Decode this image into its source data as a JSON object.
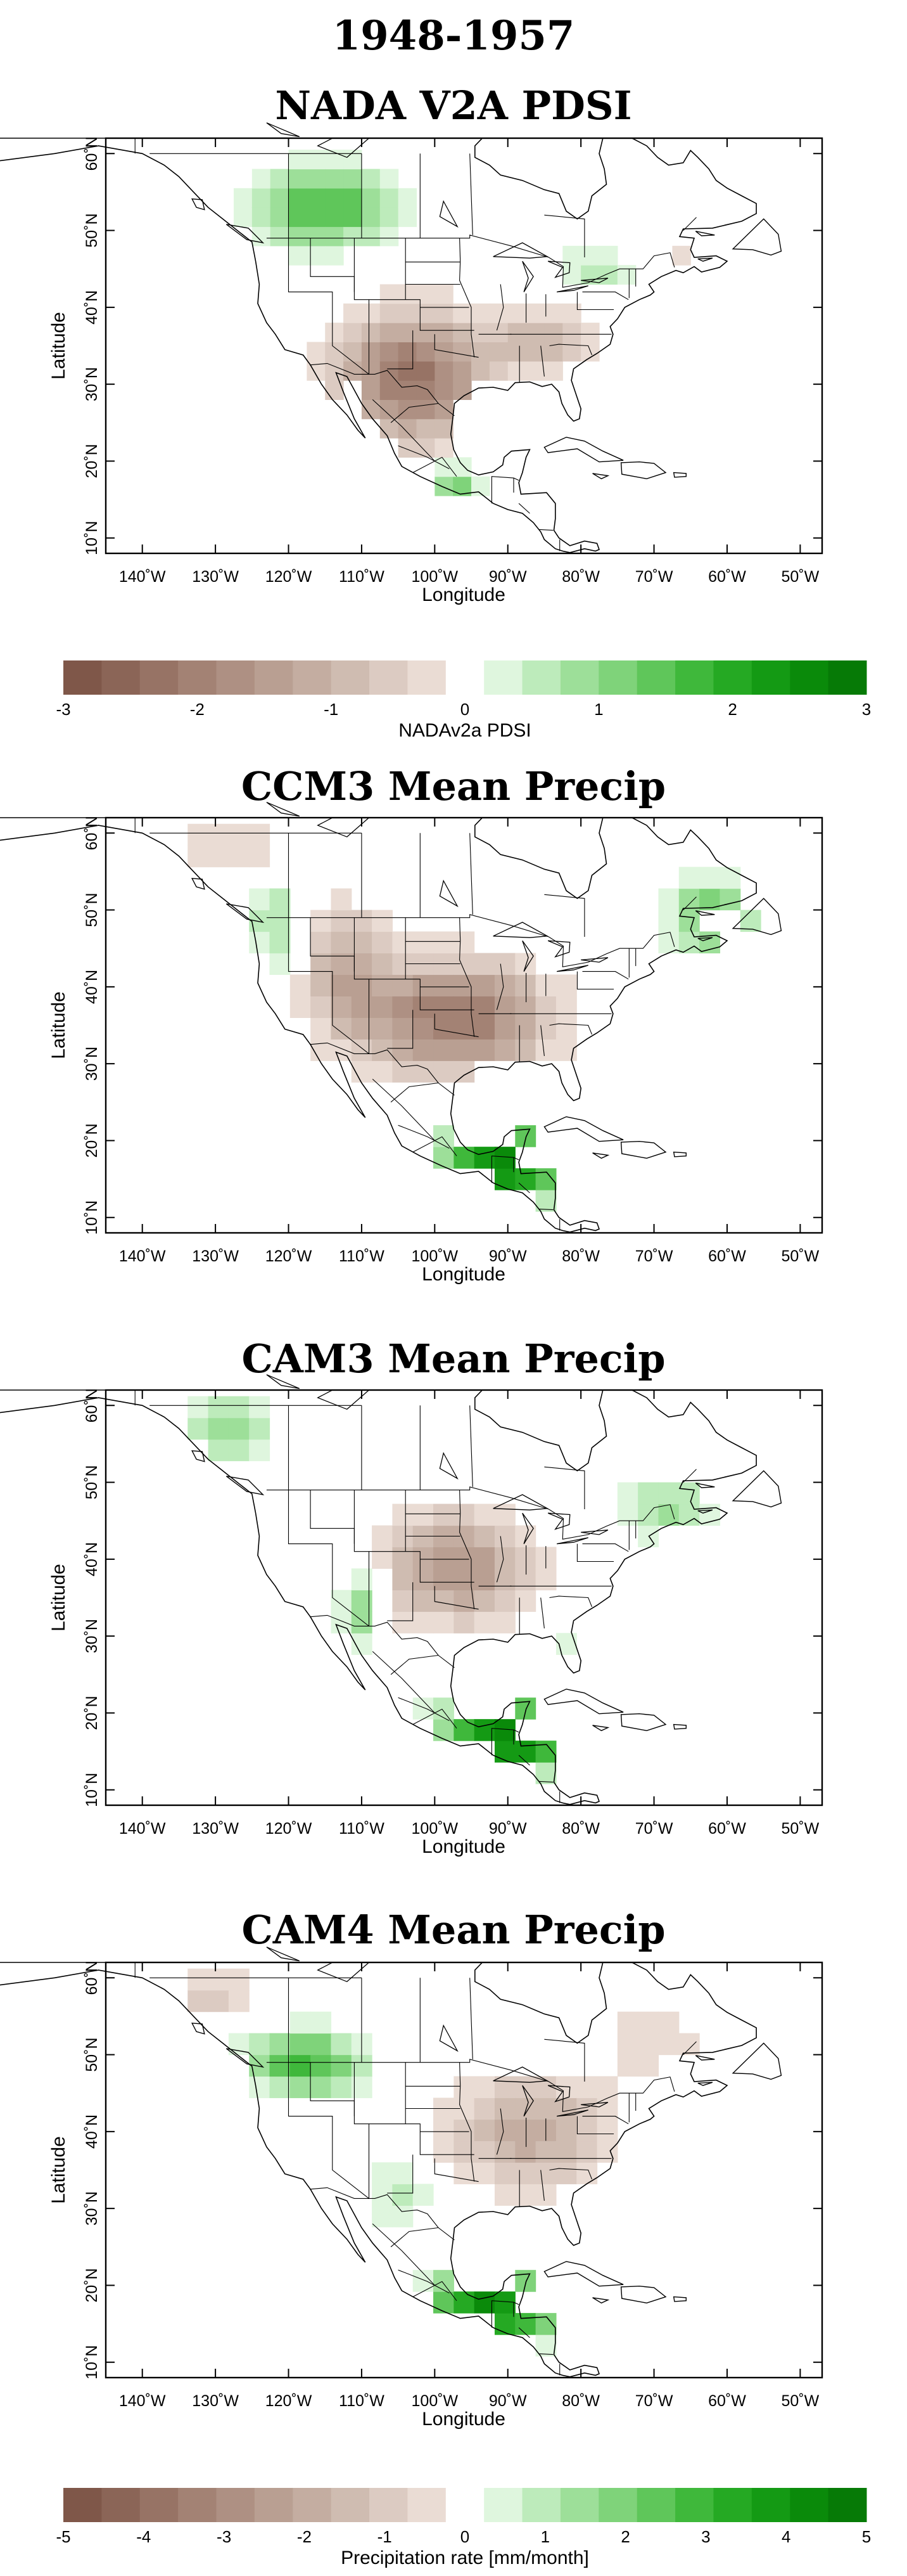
{
  "figure": {
    "title": "1948-1957",
    "panels": [
      {
        "title": "NADA V2A PDSI",
        "xlabel": "Longitude",
        "ylabel": "Latitude",
        "lon_range": [
          -145,
          -47
        ],
        "lat_range": [
          8,
          62
        ],
        "lon_ticks": [
          "140˚W",
          "130˚W",
          "120˚W",
          "110˚W",
          "100˚W",
          "90˚W",
          "80˚W",
          "70˚W",
          "60˚W",
          "50˚W"
        ],
        "lat_ticks": [
          "10˚N",
          "20˚N",
          "30˚N",
          "40˚N",
          "50˚N",
          "60˚N"
        ],
        "field": "pdsi",
        "colorbar": {
          "label": "NADAv2a PDSI",
          "ticks": [
            "-3",
            "-2",
            "-1",
            "0",
            "1",
            "2",
            "3"
          ]
        }
      },
      {
        "title": "CCM3 Mean Precip",
        "xlabel": "Longitude",
        "ylabel": "Latitude",
        "lon_ticks": [
          "140˚W",
          "130˚W",
          "120˚W",
          "110˚W",
          "100˚W",
          "90˚W",
          "80˚W",
          "70˚W",
          "60˚W",
          "50˚W"
        ],
        "lat_ticks": [
          "10˚N",
          "20˚N",
          "30˚N",
          "40˚N",
          "50˚N",
          "60˚N"
        ],
        "field": "precip"
      },
      {
        "title": "CAM3 Mean Precip",
        "xlabel": "Longitude",
        "ylabel": "Latitude",
        "lon_ticks": [
          "140˚W",
          "130˚W",
          "120˚W",
          "110˚W",
          "100˚W",
          "90˚W",
          "80˚W",
          "70˚W",
          "60˚W",
          "50˚W"
        ],
        "lat_ticks": [
          "10˚N",
          "20˚N",
          "30˚N",
          "40˚N",
          "50˚N",
          "60˚N"
        ],
        "field": "precip"
      },
      {
        "title": "CAM4 Mean Precip",
        "xlabel": "Longitude",
        "ylabel": "Latitude",
        "lon_ticks": [
          "140˚W",
          "130˚W",
          "120˚W",
          "110˚W",
          "100˚W",
          "90˚W",
          "80˚W",
          "70˚W",
          "60˚W",
          "50˚W"
        ],
        "lat_ticks": [
          "10˚N",
          "20˚N",
          "30˚N",
          "40˚N",
          "50˚N",
          "60˚N"
        ],
        "field": "precip",
        "colorbar": {
          "label": "Precipitation rate [mm/month]",
          "ticks": [
            "-5",
            "-4",
            "-3",
            "-2",
            "-1",
            "0",
            "1",
            "2",
            "3",
            "4",
            "5"
          ]
        }
      }
    ],
    "palette": {
      "brown": [
        "#7f5749",
        "#8b6557",
        "#977365",
        "#a38274",
        "#ae9083",
        "#b99f92",
        "#c4ada1",
        "#cfbcb1",
        "#dccbc2",
        "#eadcd4"
      ],
      "white": "#ffffff",
      "green": [
        "#dff6de",
        "#bdebbb",
        "#9ddf99",
        "#7fd37a",
        "#5fc65a",
        "#3fb83b",
        "#25a923",
        "#149a14",
        "#0a8a0a",
        "#067a06"
      ]
    }
  }
}
